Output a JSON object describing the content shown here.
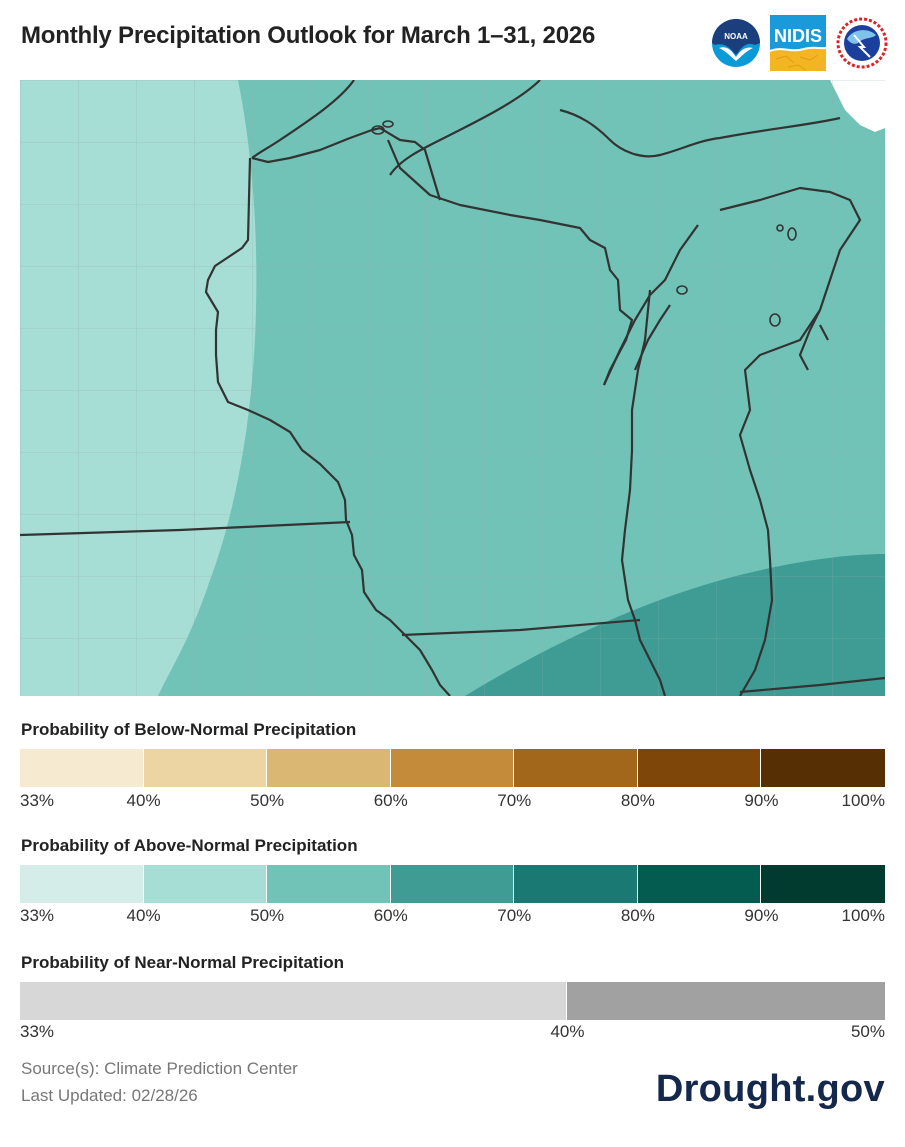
{
  "header": {
    "title": "Monthly Precipitation Outlook for March 1–31, 2026",
    "logos": [
      {
        "name": "NOAA",
        "label": "NOAA"
      },
      {
        "name": "NIDIS",
        "label": "NIDIS"
      },
      {
        "name": "National Weather Service",
        "label": "NATIONAL WEATHER SERVICE"
      }
    ]
  },
  "map": {
    "region": "Upper Midwest / Great Lakes",
    "states_visible": [
      "Minnesota",
      "Iowa",
      "Wisconsin",
      "Michigan",
      "Illinois",
      "Indiana"
    ],
    "categories_shown": [
      {
        "label": "Above 40–50%",
        "color": "#a6ddd4"
      },
      {
        "label": "Above 50–60%",
        "color": "#72c3b7"
      },
      {
        "label": "Above 60–70%",
        "color": "#3f9c94"
      }
    ]
  },
  "legends": {
    "below": {
      "title": "Probability of Below-Normal Precipitation",
      "colors": [
        "#f6ead0",
        "#ecd5a2",
        "#dbb774",
        "#c48b3a",
        "#a3671b",
        "#7e4609",
        "#563004"
      ],
      "ticks": [
        "33%",
        "40%",
        "50%",
        "60%",
        "70%",
        "80%",
        "90%",
        "100%"
      ]
    },
    "above": {
      "title": "Probability of Above-Normal Precipitation",
      "colors": [
        "#d4ede9",
        "#a6ddd4",
        "#72c3b7",
        "#3f9c94",
        "#1a7a73",
        "#045b50",
        "#013b2f"
      ],
      "ticks": [
        "33%",
        "40%",
        "50%",
        "60%",
        "70%",
        "80%",
        "90%",
        "100%"
      ]
    },
    "near": {
      "title": "Probability of Near-Normal Precipitation",
      "colors": [
        "#d7d7d7",
        "#a1a1a1"
      ],
      "ticks": [
        "33%",
        "40%",
        "50%"
      ]
    }
  },
  "footer": {
    "source": "Source(s): Climate Prediction Center",
    "updated": "Last Updated: 02/28/26",
    "brand": "Drought.gov"
  }
}
